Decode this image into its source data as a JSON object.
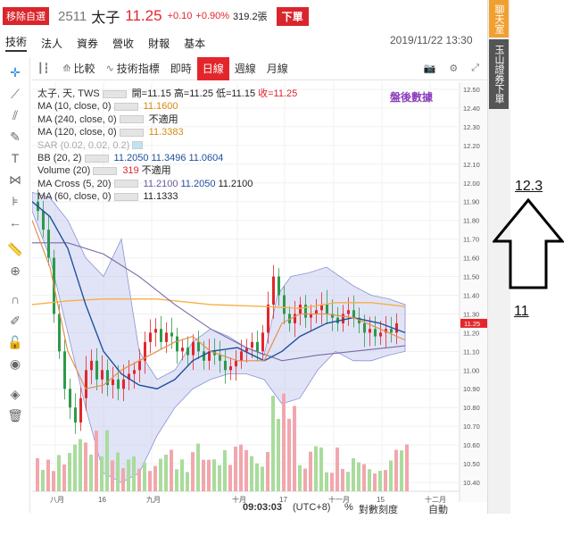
{
  "header": {
    "unfollow_label": "移除自選",
    "code": "2511",
    "name": "太子",
    "price": "11.25",
    "change": "+0.10",
    "change_pct": "+0.90%",
    "volume": "319.2張",
    "order_label": "下單"
  },
  "tabs": [
    "技術",
    "法人",
    "資券",
    "營收",
    "財報",
    "基本"
  ],
  "datetime": "2019/11/22 13:30",
  "sidebar": {
    "chat_label": "聊天室",
    "securities_label": "玉山證券下單"
  },
  "toolbar": {
    "compare_label": "比較",
    "indicators_label": "技術指標",
    "intraday_label": "即時",
    "daily_label": "日線",
    "weekly_label": "週線",
    "monthly_label": "月線"
  },
  "legend": {
    "main": {
      "label": "太子, 天, TWS",
      "open_label": "開=11.15",
      "high_label": "高=11.25",
      "low_label": "低=11.15",
      "close_label": "收=11.25"
    },
    "ma10": {
      "label": "MA (10, close, 0)",
      "value": "11.1600"
    },
    "ma240": {
      "label": "MA (240, close, 0)",
      "value": "不適用"
    },
    "ma120": {
      "label": "MA (120, close, 0)",
      "value": "11.3383"
    },
    "sar": {
      "label": "SAR (0.02, 0.02, 0.2)"
    },
    "bb": {
      "label": "BB (20, 2)",
      "v1": "11.2050",
      "v2": "11.3496",
      "v3": "11.0604"
    },
    "volume": {
      "label": "Volume (20)",
      "v1": "319",
      "v2": "不適用"
    },
    "macross": {
      "label": "MA Cross (5, 20)",
      "v1": "11.2100",
      "v2": "11.2050",
      "v3": "11.2100"
    },
    "ma60": {
      "label": "MA (60, close, 0)",
      "value": "11.1333"
    },
    "after_hours": "盤後數據"
  },
  "bottom": {
    "time": "09:03:03",
    "tz": "(UTC+8)",
    "pct": "%",
    "log": "對數刻度",
    "auto": "自動"
  },
  "annotations": {
    "up_value": "12.3",
    "down_value": "11"
  },
  "chart_data": {
    "type": "candlestick",
    "y_ticks": [
      "12.50",
      "12.40",
      "12.30",
      "12.20",
      "12.10",
      "12.00",
      "11.90",
      "11.80",
      "11.70",
      "11.60",
      "11.50",
      "11.40",
      "11.30",
      "11.20",
      "11.10",
      "11.00",
      "10.90",
      "10.80",
      "10.70",
      "10.60",
      "10.50",
      "10.40"
    ],
    "x_ticks": [
      "八月",
      "16",
      "九月",
      "十月",
      "17",
      "十一月",
      "15",
      "十二月"
    ],
    "last_price_label": "11.25",
    "ylim": [
      10.36,
      12.52
    ],
    "colors": {
      "up": "#e3262c",
      "down": "#2b9a4a",
      "ma10": "#e4904a",
      "ma60": "#1f50a0",
      "ma120": "#f5b04a",
      "ma240": "#7a6aa8",
      "bb_fill": "#c8cdef",
      "bb_line": "#8a92d6",
      "vol_up": "#f2a6ad",
      "vol_down": "#a9dc9c"
    }
  }
}
